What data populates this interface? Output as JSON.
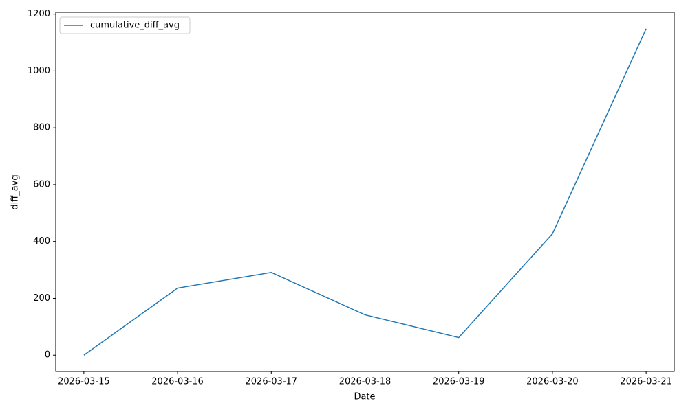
{
  "chart_data": {
    "type": "line",
    "x_label": "Date",
    "y_label": "diff_avg",
    "x": [
      "2026-03-15",
      "2026-03-16",
      "2026-03-17",
      "2026-03-18",
      "2026-03-19",
      "2026-03-20",
      "2026-03-21"
    ],
    "series": [
      {
        "name": "cumulative_diff_avg",
        "color": "#1f77b4",
        "values": [
          0,
          236,
          291,
          142,
          62,
          427,
          1149
        ]
      }
    ],
    "ylim": [
      -57.45,
      1206.45
    ],
    "yticks": [
      0,
      200,
      400,
      600,
      800,
      1000,
      1200
    ],
    "legend": "upper left",
    "grid": false
  }
}
